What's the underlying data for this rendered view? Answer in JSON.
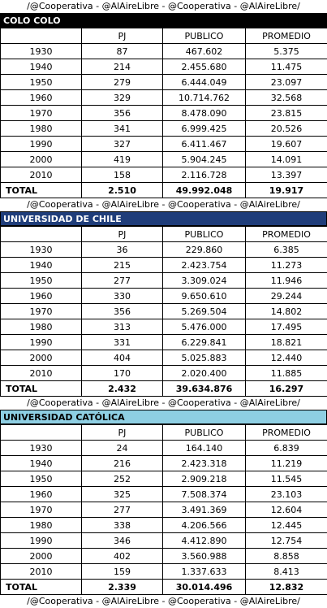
{
  "credit": "/@Cooperativa - @AlAireLibre - @Cooperativa - @AlAireLibre/",
  "columns": [
    "",
    "PJ",
    "PUBLICO",
    "PROMEDIO"
  ],
  "teams": [
    {
      "name": "COLO COLO",
      "rows": [
        [
          "1930",
          "87",
          "467.602",
          "5.375"
        ],
        [
          "1940",
          "214",
          "2.455.680",
          "11.475"
        ],
        [
          "1950",
          "279",
          "6.444.049",
          "23.097"
        ],
        [
          "1960",
          "329",
          "10.714.762",
          "32.568"
        ],
        [
          "1970",
          "356",
          "8.478.090",
          "23.815"
        ],
        [
          "1980",
          "341",
          "6.999.425",
          "20.526"
        ],
        [
          "1990",
          "327",
          "6.411.467",
          "19.607"
        ],
        [
          "2000",
          "419",
          "5.904.245",
          "14.091"
        ],
        [
          "2010",
          "158",
          "2.116.728",
          "13.397"
        ]
      ],
      "total": [
        "TOTAL",
        "2.510",
        "49.992.048",
        "19.917"
      ]
    },
    {
      "name": "UNIVERSIDAD DE CHILE",
      "rows": [
        [
          "1930",
          "36",
          "229.860",
          "6.385"
        ],
        [
          "1940",
          "215",
          "2.423.754",
          "11.273"
        ],
        [
          "1950",
          "277",
          "3.309.024",
          "11.946"
        ],
        [
          "1960",
          "330",
          "9.650.610",
          "29.244"
        ],
        [
          "1970",
          "356",
          "5.269.504",
          "14.802"
        ],
        [
          "1980",
          "313",
          "5.476.000",
          "17.495"
        ],
        [
          "1990",
          "331",
          "6.229.841",
          "18.821"
        ],
        [
          "2000",
          "404",
          "5.025.883",
          "12.440"
        ],
        [
          "2010",
          "170",
          "2.020.400",
          "11.885"
        ]
      ],
      "total": [
        "TOTAL",
        "2.432",
        "39.634.876",
        "16.297"
      ]
    },
    {
      "name": "UNIVERSIDAD CATÓLICA",
      "rows": [
        [
          "1930",
          "24",
          "164.140",
          "6.839"
        ],
        [
          "1940",
          "216",
          "2.423.318",
          "11.219"
        ],
        [
          "1950",
          "252",
          "2.909.218",
          "11.545"
        ],
        [
          "1960",
          "325",
          "7.508.374",
          "23.103"
        ],
        [
          "1970",
          "277",
          "3.491.369",
          "12.604"
        ],
        [
          "1980",
          "338",
          "4.206.566",
          "12.445"
        ],
        [
          "1990",
          "346",
          "4.412.890",
          "12.754"
        ],
        [
          "2000",
          "402",
          "3.560.988",
          "8.858"
        ],
        [
          "2010",
          "159",
          "1.337.633",
          "8.413"
        ]
      ],
      "total": [
        "TOTAL",
        "2.339",
        "30.014.496",
        "12.832"
      ]
    }
  ]
}
